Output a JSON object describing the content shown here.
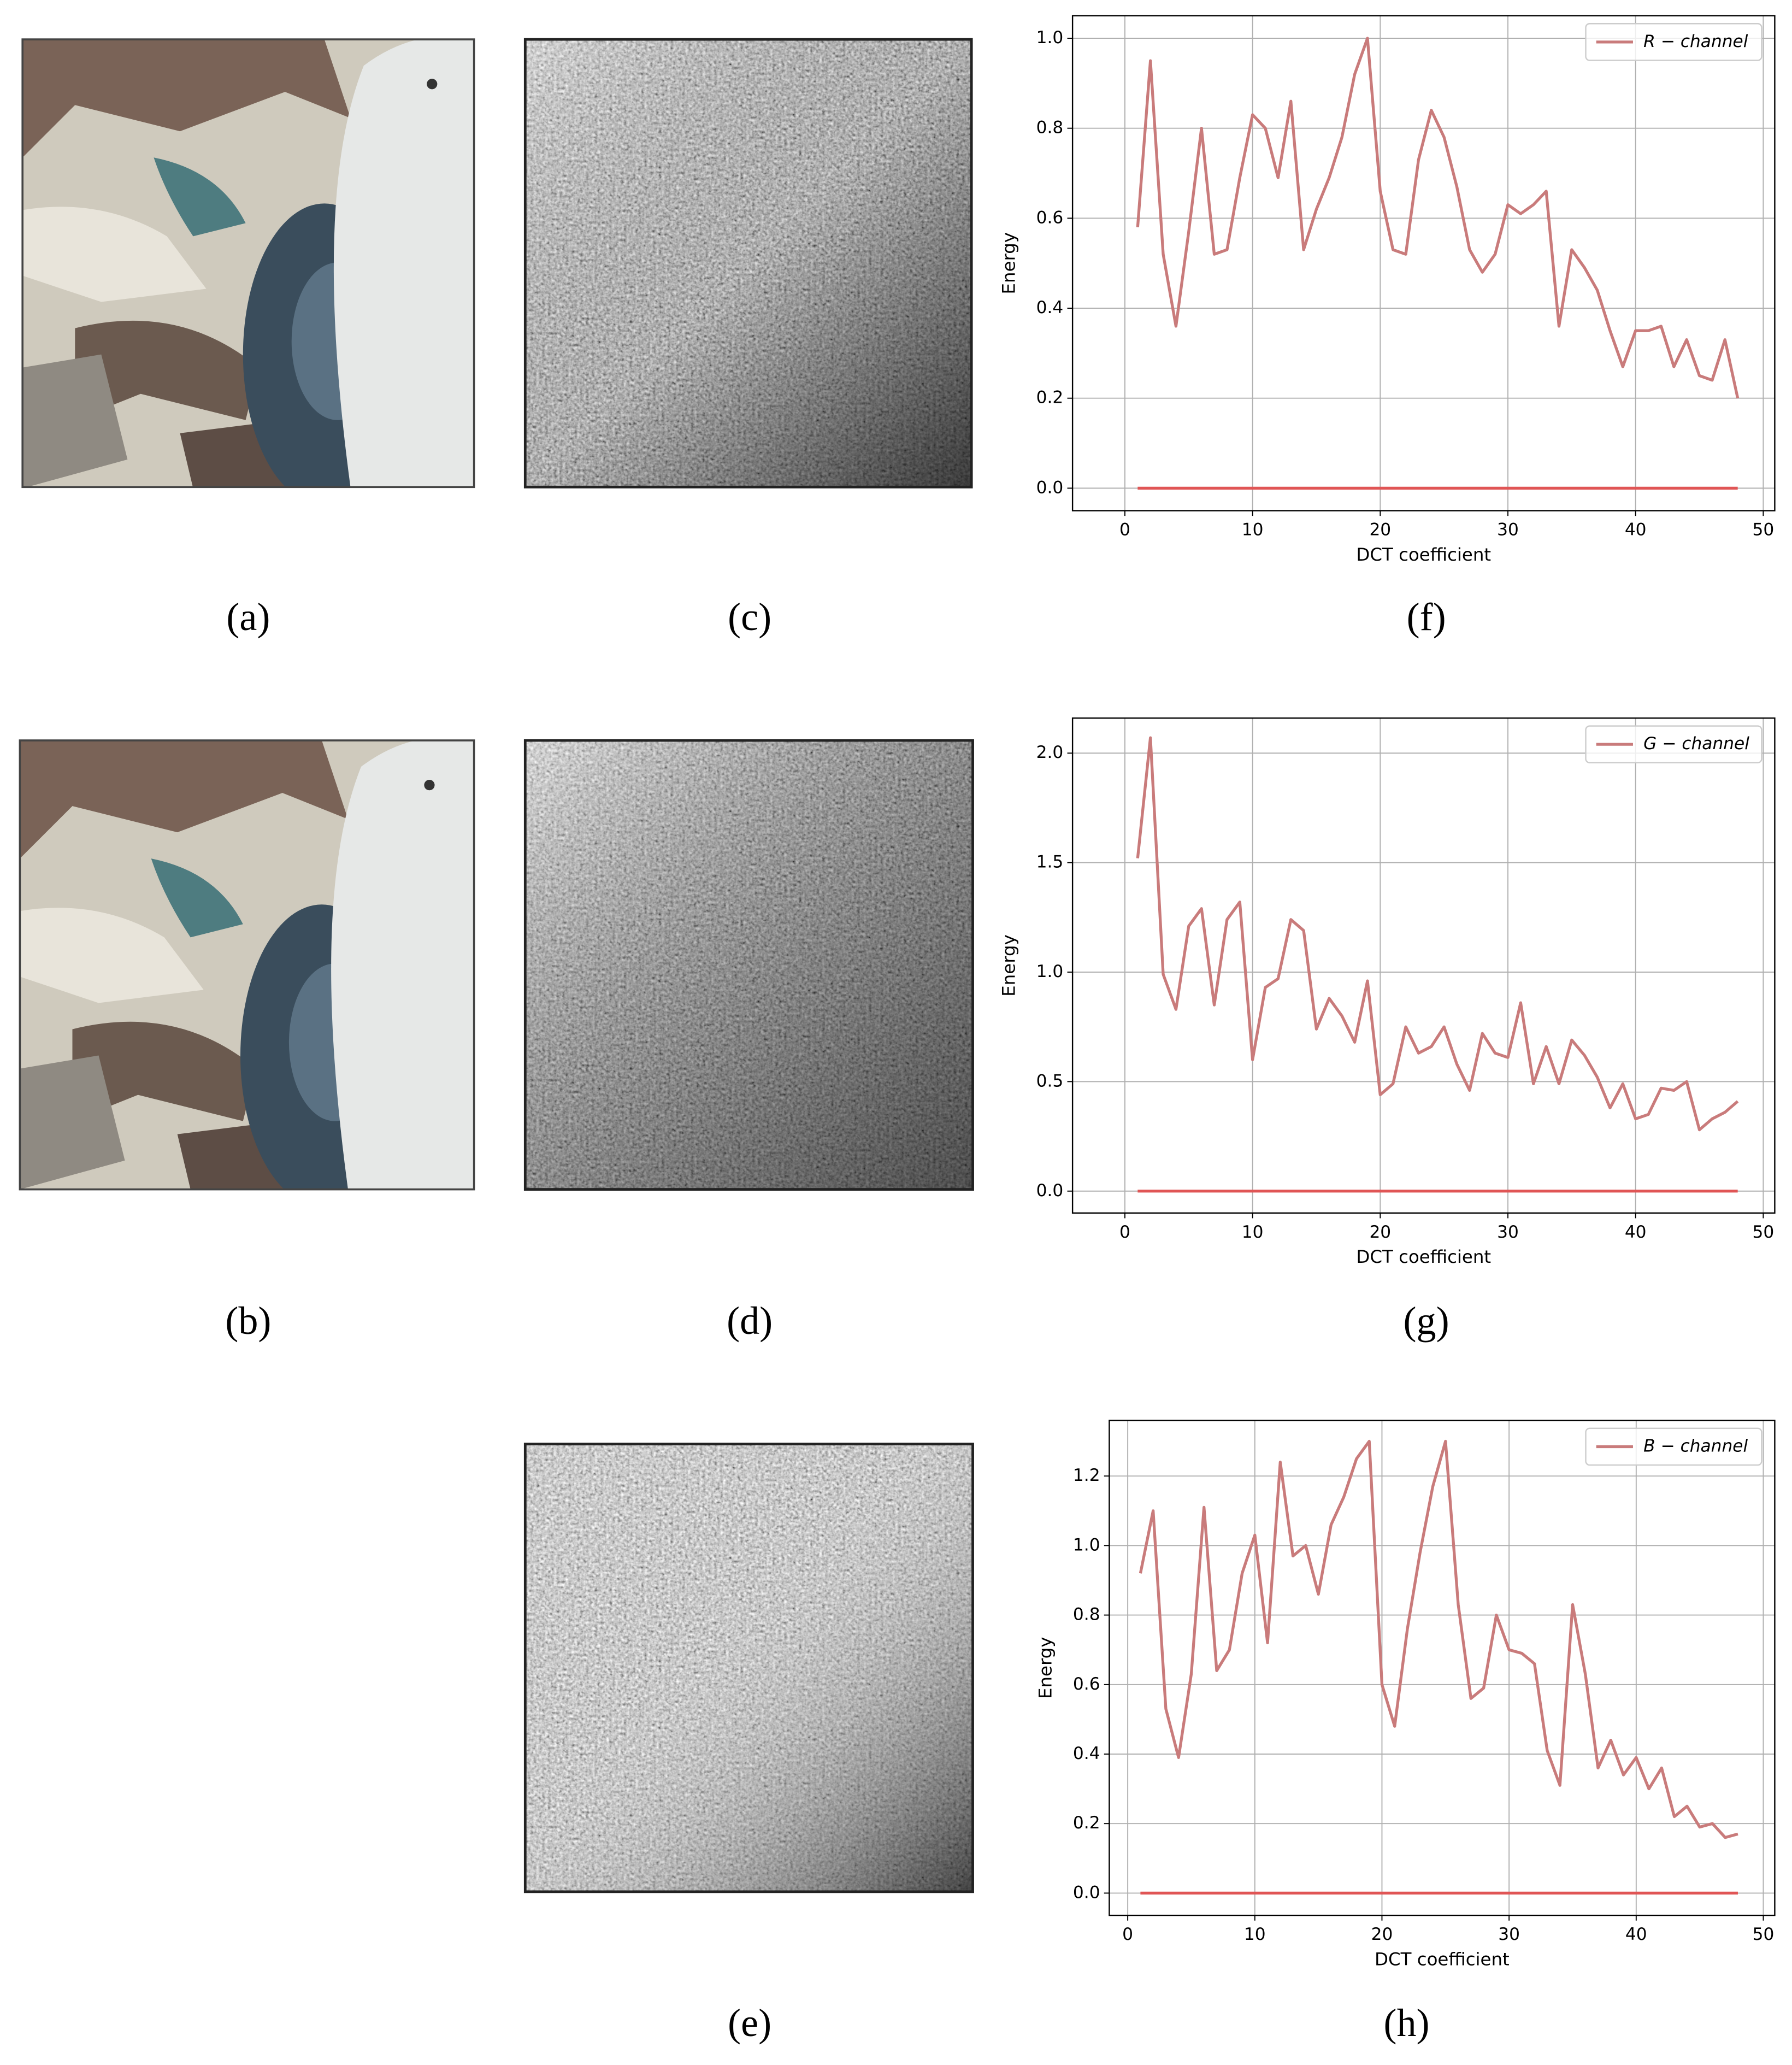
{
  "images": [
    {
      "label": "(a)"
    },
    {
      "label": "(b)"
    },
    {
      "label": "(c)"
    },
    {
      "label": "(d)"
    },
    {
      "label": "(e)"
    }
  ],
  "chart_data": [
    {
      "type": "line",
      "label": "(f)",
      "xlabel": "DCT coefficient",
      "ylabel": "Energy",
      "legend": "upper right",
      "grid": true,
      "x": [
        1,
        2,
        3,
        4,
        5,
        6,
        7,
        8,
        9,
        10,
        11,
        12,
        13,
        14,
        15,
        16,
        17,
        18,
        19,
        20,
        21,
        22,
        23,
        24,
        25,
        26,
        27,
        28,
        29,
        30,
        31,
        32,
        33,
        34,
        35,
        36,
        37,
        38,
        39,
        40,
        41,
        42,
        43,
        44,
        45,
        46,
        47,
        48
      ],
      "xlim": [
        -4.1,
        50.9
      ],
      "xticks": [
        0,
        10,
        20,
        30,
        40,
        50
      ],
      "ylim": [
        -0.05,
        1.05
      ],
      "yticks": [
        {
          "value": 0,
          "label": "0.0"
        },
        0.2,
        0.4,
        0.6,
        0.8,
        {
          "value": 1,
          "label": "1.0"
        }
      ],
      "series": [
        {
          "name": "R − channel",
          "color": "#c97b7b",
          "values": [
            0.58,
            0.95,
            0.52,
            0.36,
            0.57,
            0.8,
            0.52,
            0.53,
            0.69,
            0.83,
            0.8,
            0.69,
            0.86,
            0.53,
            0.62,
            0.69,
            0.78,
            0.92,
            1.0,
            0.66,
            0.53,
            0.52,
            0.73,
            0.84,
            0.78,
            0.67,
            0.53,
            0.48,
            0.52,
            0.63,
            0.61,
            0.63,
            0.66,
            0.36,
            0.53,
            0.49,
            0.44,
            0.35,
            0.27,
            0.35,
            0.35,
            0.36,
            0.27,
            0.33,
            0.25,
            0.24,
            0.33,
            0.2
          ]
        },
        {
          "color": "#e05555",
          "values": [
            0,
            0,
            0,
            0,
            0,
            0,
            0,
            0,
            0,
            0,
            0,
            0,
            0,
            0,
            0,
            0,
            0,
            0,
            0,
            0,
            0,
            0,
            0,
            0,
            0,
            0,
            0,
            0,
            0,
            0,
            0,
            0,
            0,
            0,
            0,
            0,
            0,
            0,
            0,
            0,
            0,
            0,
            0,
            0,
            0,
            0,
            0,
            0
          ]
        }
      ]
    },
    {
      "type": "line",
      "label": "(g)",
      "xlabel": "DCT coefficient",
      "ylabel": "Energy",
      "legend": "upper right",
      "grid": true,
      "x": [
        1,
        2,
        3,
        4,
        5,
        6,
        7,
        8,
        9,
        10,
        11,
        12,
        13,
        14,
        15,
        16,
        17,
        18,
        19,
        20,
        21,
        22,
        23,
        24,
        25,
        26,
        27,
        28,
        29,
        30,
        31,
        32,
        33,
        34,
        35,
        36,
        37,
        38,
        39,
        40,
        41,
        42,
        43,
        44,
        45,
        46,
        47,
        48
      ],
      "xlim": [
        -4.1,
        50.9
      ],
      "xticks": [
        0,
        10,
        20,
        30,
        40,
        50
      ],
      "ylim": [
        -0.1,
        2.16
      ],
      "yticks": [
        {
          "value": 0,
          "label": "0.0"
        },
        0.5,
        {
          "value": 1,
          "label": "1.0"
        },
        1.5,
        {
          "value": 2,
          "label": "2.0"
        }
      ],
      "series": [
        {
          "name": "G − channel",
          "color": "#c97b7b",
          "values": [
            1.52,
            2.07,
            0.99,
            0.83,
            1.21,
            1.29,
            0.85,
            1.24,
            1.32,
            0.6,
            0.93,
            0.97,
            1.24,
            1.19,
            0.74,
            0.88,
            0.8,
            0.68,
            0.96,
            0.44,
            0.49,
            0.75,
            0.63,
            0.66,
            0.75,
            0.58,
            0.46,
            0.72,
            0.63,
            0.61,
            0.86,
            0.49,
            0.66,
            0.49,
            0.69,
            0.62,
            0.52,
            0.38,
            0.49,
            0.33,
            0.35,
            0.47,
            0.46,
            0.5,
            0.28,
            0.33,
            0.36,
            0.41
          ]
        },
        {
          "color": "#e05555",
          "values": [
            0,
            0,
            0,
            0,
            0,
            0,
            0,
            0,
            0,
            0,
            0,
            0,
            0,
            0,
            0,
            0,
            0,
            0,
            0,
            0,
            0,
            0,
            0,
            0,
            0,
            0,
            0,
            0,
            0,
            0,
            0,
            0,
            0,
            0,
            0,
            0,
            0,
            0,
            0,
            0,
            0,
            0,
            0,
            0,
            0,
            0,
            0,
            0
          ]
        }
      ]
    },
    {
      "type": "line",
      "label": "(h)",
      "xlabel": "DCT coefficient",
      "ylabel": "Energy",
      "legend": "upper right",
      "grid": true,
      "x": [
        1,
        2,
        3,
        4,
        5,
        6,
        7,
        8,
        9,
        10,
        11,
        12,
        13,
        14,
        15,
        16,
        17,
        18,
        19,
        20,
        21,
        22,
        23,
        24,
        25,
        26,
        27,
        28,
        29,
        30,
        31,
        32,
        33,
        34,
        35,
        36,
        37,
        38,
        39,
        40,
        41,
        42,
        43,
        44,
        45,
        46,
        47,
        48
      ],
      "xlim": [
        -1.45,
        50.9
      ],
      "xticks": [
        0,
        10,
        20,
        30,
        40,
        50
      ],
      "ylim": [
        -0.064,
        1.36
      ],
      "yticks": [
        {
          "value": 0,
          "label": "0.0"
        },
        0.2,
        0.4,
        0.6,
        0.8,
        {
          "value": 1,
          "label": "1.0"
        },
        1.2
      ],
      "series": [
        {
          "name": "B − channel",
          "color": "#c97b7b",
          "values": [
            0.92,
            1.1,
            0.53,
            0.39,
            0.63,
            1.11,
            0.64,
            0.7,
            0.92,
            1.03,
            0.72,
            1.24,
            0.97,
            1.0,
            0.86,
            1.06,
            1.14,
            1.25,
            1.3,
            0.6,
            0.48,
            0.76,
            0.98,
            1.17,
            1.3,
            0.83,
            0.56,
            0.59,
            0.8,
            0.7,
            0.69,
            0.66,
            0.41,
            0.31,
            0.83,
            0.63,
            0.36,
            0.44,
            0.34,
            0.39,
            0.3,
            0.36,
            0.22,
            0.25,
            0.19,
            0.2,
            0.16,
            0.17
          ]
        },
        {
          "color": "#e05555",
          "values": [
            0,
            0,
            0,
            0,
            0,
            0,
            0,
            0,
            0,
            0,
            0,
            0,
            0,
            0,
            0,
            0,
            0,
            0,
            0,
            0,
            0,
            0,
            0,
            0,
            0,
            0,
            0,
            0,
            0,
            0,
            0,
            0,
            0,
            0,
            0,
            0,
            0,
            0,
            0,
            0,
            0,
            0,
            0,
            0,
            0,
            0,
            0,
            0
          ]
        }
      ]
    }
  ]
}
